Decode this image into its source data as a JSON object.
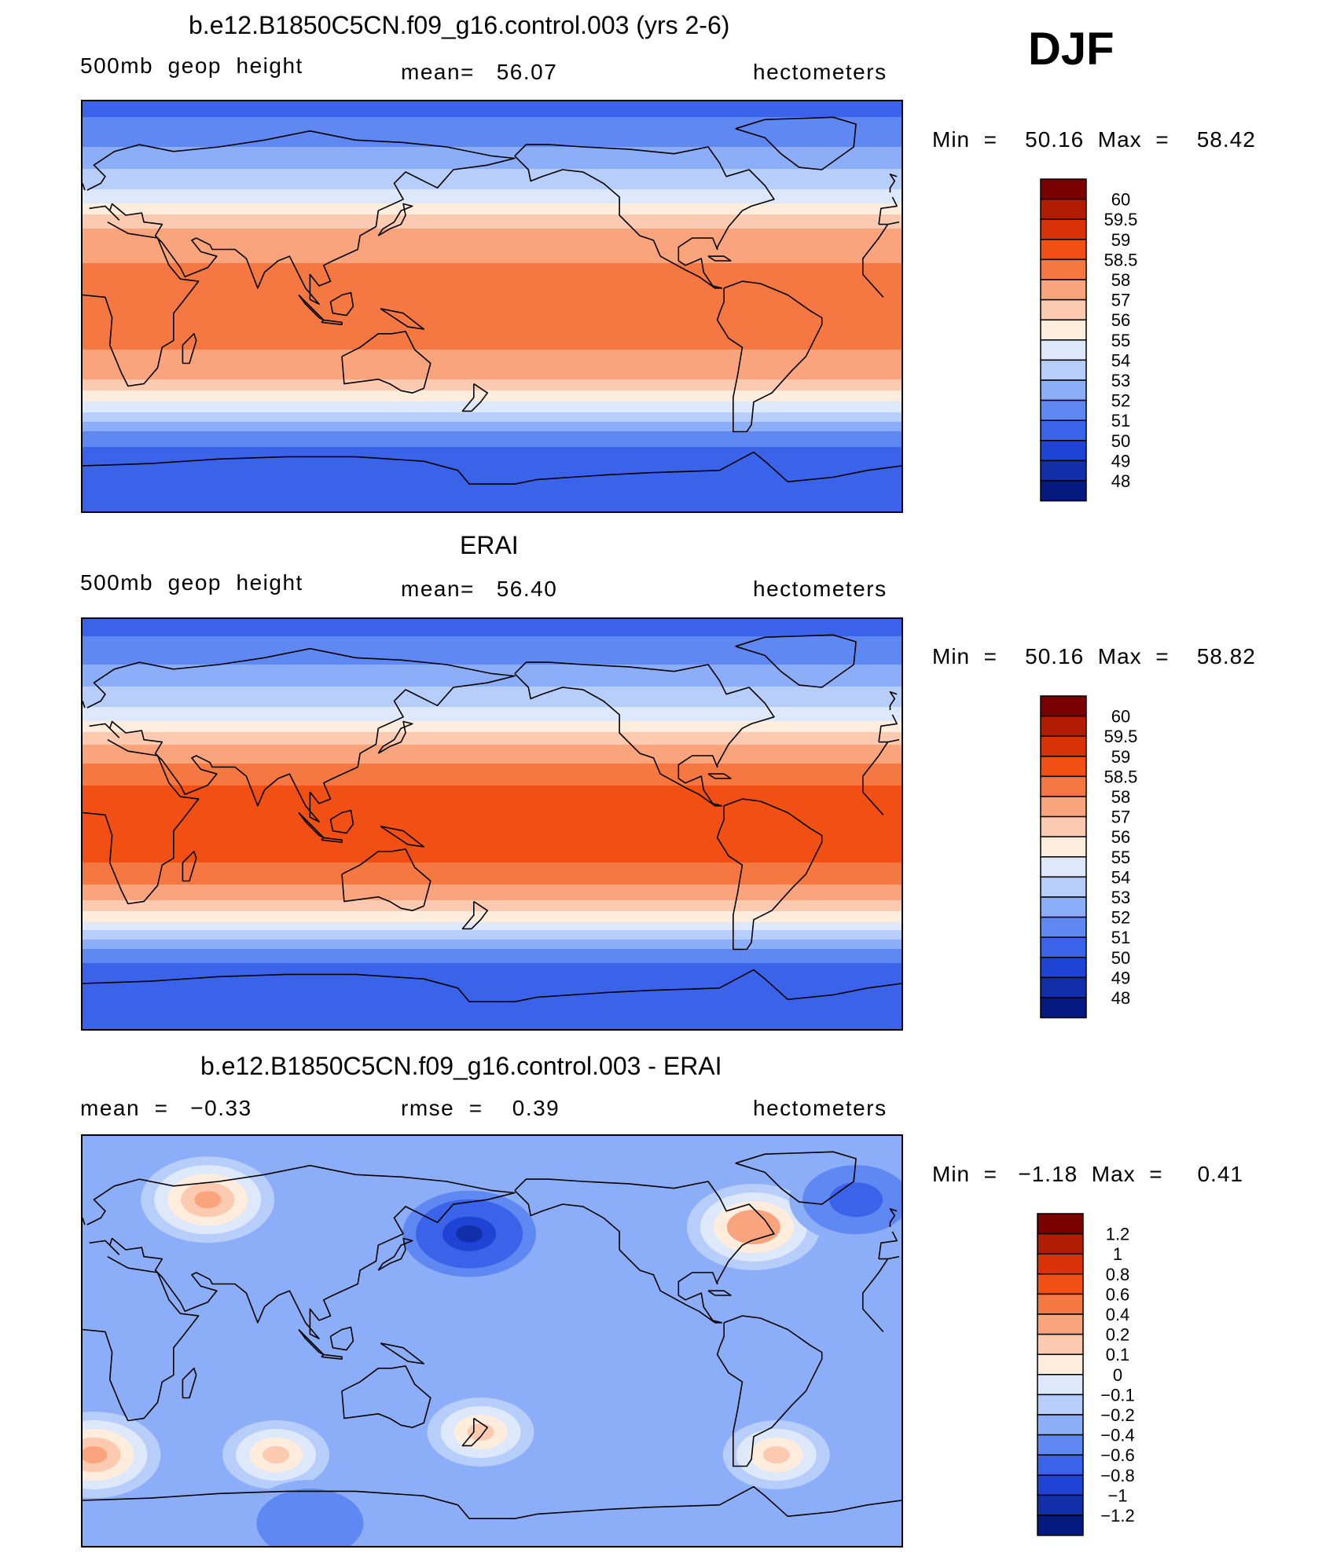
{
  "season": "DJF",
  "panels": [
    {
      "id": "model",
      "title": "b.e12.B1850C5CN.f09_g16.control.003 (yrs 2-6)",
      "left": "500mb  geop  height",
      "center": "mean=   56.07",
      "right": "hectometers",
      "minmax": "Min  =    50.16  Max  =    58.42"
    },
    {
      "id": "obs",
      "title": "ERAI",
      "left": "500mb  geop  height",
      "center": "mean=   56.40",
      "right": "hectometers",
      "minmax": "Min  =    50.16  Max  =    58.82"
    },
    {
      "id": "diff",
      "title": "b.e12.B1850C5CN.f09_g16.control.003 - ERAI",
      "left": "mean  =   −0.33",
      "center": "rmse  =    0.39",
      "right": "hectometers",
      "minmax": "Min  =   −1.18  Max  =     0.41"
    }
  ],
  "chart_data": [
    {
      "type": "heatmap",
      "title": "b.e12.B1850C5CN.f09_g16.control.003 (yrs 2-6)",
      "variable": "500mb geop height",
      "units": "hectometers",
      "mean": 56.07,
      "min": 50.16,
      "max": 58.42,
      "bands": [
        {
          "lat": 90,
          "value": 50.5
        },
        {
          "lat": 70,
          "value": 52.0
        },
        {
          "lat": 55,
          "value": 53.5
        },
        {
          "lat": 45,
          "value": 55.0
        },
        {
          "lat": 38,
          "value": 56.5
        },
        {
          "lat": 30,
          "value": 57.5
        },
        {
          "lat": 15,
          "value": 58.2
        },
        {
          "lat": 0,
          "value": 58.3
        },
        {
          "lat": -15,
          "value": 58.2
        },
        {
          "lat": -30,
          "value": 57.5
        },
        {
          "lat": -42,
          "value": 55.0
        },
        {
          "lat": -55,
          "value": 52.0
        },
        {
          "lat": -65,
          "value": 50.5
        },
        {
          "lat": -90,
          "value": 50.2
        }
      ],
      "colorbar_levels": [
        "60",
        "59.5",
        "59",
        "58.5",
        "58",
        "57",
        "56",
        "55",
        "54",
        "53",
        "52",
        "51",
        "50",
        "49",
        "48"
      ],
      "colors": [
        "#7a0000",
        "#b11c02",
        "#d93209",
        "#f24f14",
        "#f57843",
        "#f9a47c",
        "#fccab0",
        "#feecdc",
        "#dde9fb",
        "#b7cdfa",
        "#8caef8",
        "#5f88f3",
        "#3a63ea",
        "#1f43d4",
        "#102fa8",
        "#041a80"
      ]
    },
    {
      "type": "heatmap",
      "title": "ERAI",
      "variable": "500mb geop height",
      "units": "hectometers",
      "mean": 56.4,
      "min": 50.16,
      "max": 58.82,
      "bands": [
        {
          "lat": 90,
          "value": 50.4
        },
        {
          "lat": 70,
          "value": 52.0
        },
        {
          "lat": 55,
          "value": 53.5
        },
        {
          "lat": 45,
          "value": 55.0
        },
        {
          "lat": 38,
          "value": 56.5
        },
        {
          "lat": 30,
          "value": 57.8
        },
        {
          "lat": 15,
          "value": 58.6
        },
        {
          "lat": 0,
          "value": 58.7
        },
        {
          "lat": -15,
          "value": 58.6
        },
        {
          "lat": -30,
          "value": 57.8
        },
        {
          "lat": -42,
          "value": 55.2
        },
        {
          "lat": -55,
          "value": 52.0
        },
        {
          "lat": -65,
          "value": 50.4
        },
        {
          "lat": -90,
          "value": 50.5
        }
      ],
      "colorbar_levels": [
        "60",
        "59.5",
        "59",
        "58.5",
        "58",
        "57",
        "56",
        "55",
        "54",
        "53",
        "52",
        "51",
        "50",
        "49",
        "48"
      ],
      "colors": [
        "#7a0000",
        "#b11c02",
        "#d93209",
        "#f24f14",
        "#f57843",
        "#f9a47c",
        "#fccab0",
        "#feecdc",
        "#dde9fb",
        "#b7cdfa",
        "#8caef8",
        "#5f88f3",
        "#3a63ea",
        "#1f43d4",
        "#102fa8",
        "#041a80"
      ]
    },
    {
      "type": "heatmap",
      "title": "b.e12.B1850C5CN.f09_g16.control.003 - ERAI",
      "variable": "difference",
      "units": "hectometers",
      "mean": -0.33,
      "rmse": 0.39,
      "min": -1.18,
      "max": 0.41,
      "background_value": -0.3,
      "features": [
        {
          "name": "north-pacific-low",
          "lon": 170,
          "lat": 47,
          "value": -1.1
        },
        {
          "name": "eurasia-high",
          "lon": 55,
          "lat": 62,
          "value": 0.25
        },
        {
          "name": "north-america-high",
          "lon": 295,
          "lat": 50,
          "value": 0.35
        },
        {
          "name": "north-atlantic-low",
          "lon": 340,
          "lat": 62,
          "value": -0.7
        },
        {
          "name": "southern-ocean-high-1",
          "lon": 5,
          "lat": -50,
          "value": 0.2
        },
        {
          "name": "southern-ocean-high-2",
          "lon": 85,
          "lat": -50,
          "value": 0.15
        },
        {
          "name": "new-zealand-high",
          "lon": 175,
          "lat": -40,
          "value": 0.1
        },
        {
          "name": "south-atlantic-high",
          "lon": 305,
          "lat": -50,
          "value": 0.1
        },
        {
          "name": "antarctic-low",
          "lon": 100,
          "lat": -80,
          "value": -0.6
        }
      ],
      "colorbar_levels": [
        "1.2",
        "1",
        "0.8",
        "0.6",
        "0.4",
        "0.2",
        "0.1",
        "0",
        "−0.1",
        "−0.2",
        "−0.4",
        "−0.6",
        "−0.8",
        "−1",
        "−1.2"
      ],
      "colors": [
        "#7a0000",
        "#b11c02",
        "#d93209",
        "#f24f14",
        "#f57843",
        "#f9a47c",
        "#fccab0",
        "#feecdc",
        "#dde9fb",
        "#b7cdfa",
        "#8caef8",
        "#5f88f3",
        "#3a63ea",
        "#1f43d4",
        "#102fa8",
        "#041a80"
      ]
    }
  ]
}
